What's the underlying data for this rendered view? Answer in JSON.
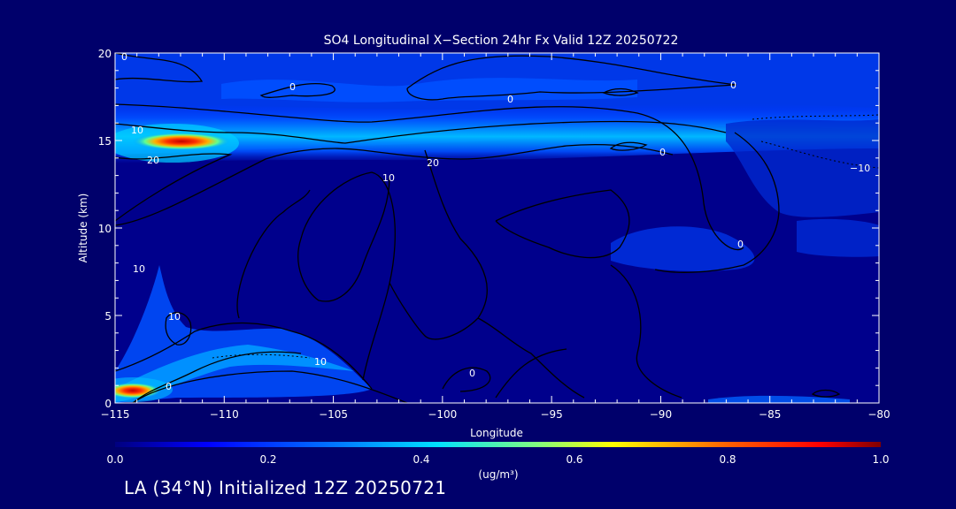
{
  "chart_data": {
    "type": "heatmap",
    "title": "SO4 Longitudinal X−Section 24hr  Fx Valid 12Z 20250722",
    "xlabel": "Longitude",
    "ylabel": "Altitude (km)",
    "xlim": [
      -115,
      -80
    ],
    "ylim": [
      0,
      20
    ],
    "x_ticks": [
      -115,
      -110,
      -105,
      -100,
      -95,
      -90,
      -85,
      -80
    ],
    "x_tick_labels": [
      "−115",
      "−110",
      "−105",
      "−100",
      "−95",
      "−90",
      "−85",
      "−80"
    ],
    "y_ticks": [
      0,
      5,
      10,
      15,
      20
    ],
    "y_tick_labels": [
      "0",
      "5",
      "10",
      "15",
      "20"
    ],
    "colorbar": {
      "min": 0.0,
      "max": 1.0,
      "ticks": [
        0.0,
        0.2,
        0.4,
        0.6,
        0.8,
        1.0
      ],
      "tick_labels": [
        "0.0",
        "0.2",
        "0.4",
        "0.6",
        "0.8",
        "1.0"
      ],
      "unit_label": "(ug/m³)"
    },
    "contour_labels": [
      "0",
      "0",
      "0",
      "10",
      "20",
      "10",
      "0",
      "0",
      "10",
      "−10",
      "0",
      "0",
      "10",
      "20",
      "10",
      "0"
    ],
    "concentration_features": [
      {
        "name": "upper tropospheric band",
        "altitude_km": 15,
        "lon_range": [
          -115,
          -80
        ],
        "value": 0.35
      },
      {
        "name": "western plume aloft",
        "lon": -112,
        "altitude_km": 15,
        "value": 0.85
      },
      {
        "name": "western surface plume",
        "lon": -114,
        "altitude_km": 0.5,
        "value": 0.8
      },
      {
        "name": "west boundary layer",
        "lon_range": [
          -115,
          -105
        ],
        "altitude_km": [
          0,
          3
        ],
        "value": 0.3
      }
    ]
  },
  "footer": {
    "text": "LA (34°N) Initialized 12Z 20250721"
  },
  "colors": {
    "background": "#00006b",
    "plot_base": "#00008c",
    "contour": "#000000",
    "text": "#ffffff"
  }
}
